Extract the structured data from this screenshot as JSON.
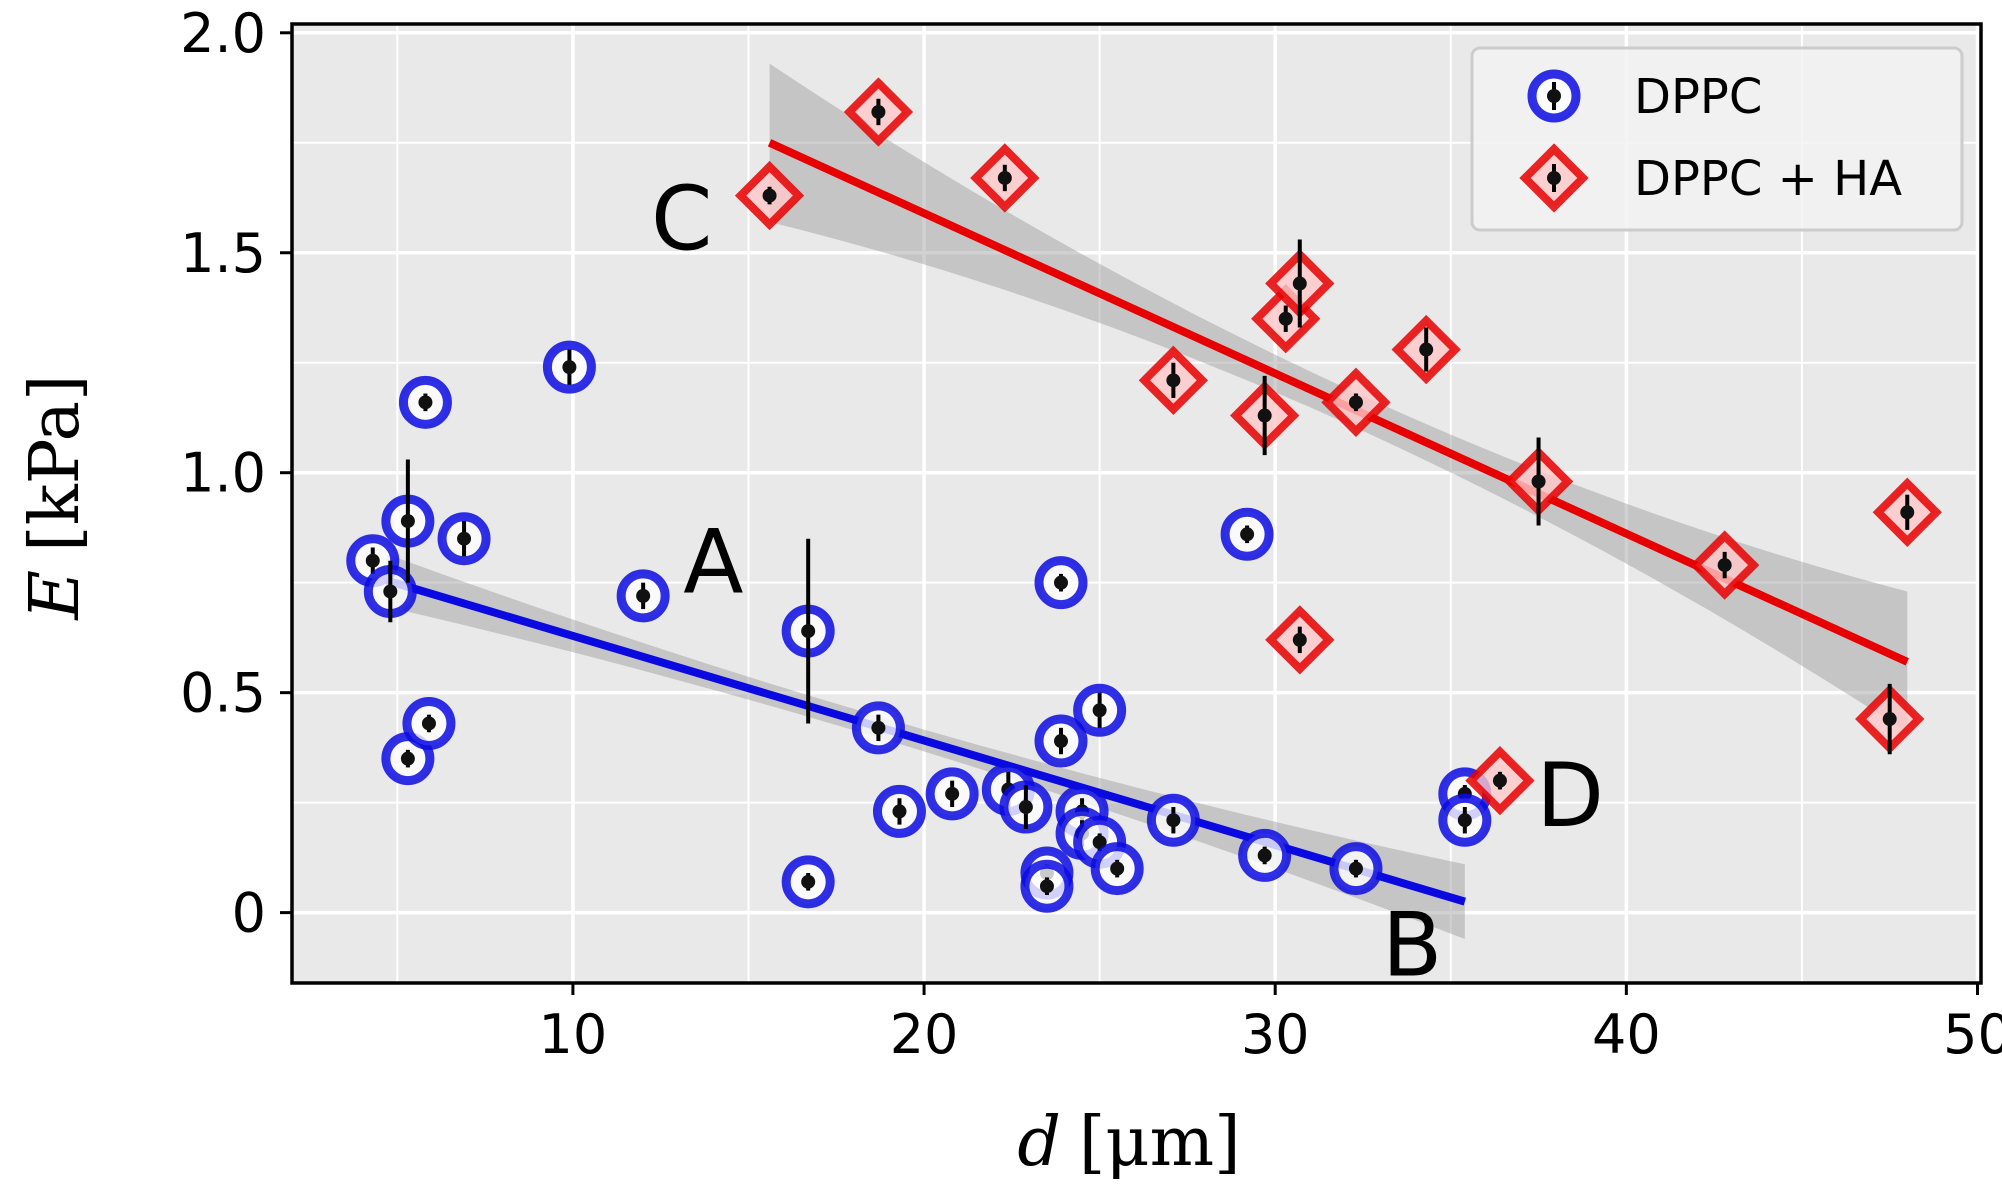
{
  "chart_data": {
    "type": "scatter",
    "xlabel_symbol": "d",
    "xlabel_unit": "[μm]",
    "ylabel_symbol": "E",
    "ylabel_unit": "[kPa]",
    "xlim": [
      2,
      50.1
    ],
    "ylim": [
      -0.16,
      2.02
    ],
    "xticks": [
      10,
      20,
      30,
      40,
      50
    ],
    "xtick_labels": [
      "10",
      "20",
      "30",
      "40",
      "50"
    ],
    "yticks": [
      0,
      0.5,
      1.0,
      1.5,
      2.0
    ],
    "ytick_labels": [
      "0",
      "0.5",
      "1.0",
      "1.5",
      "2.0"
    ],
    "grid": true,
    "legend_position": "top-right",
    "series": [
      {
        "name": "DPPC",
        "marker": "circle",
        "color": "#0a0ae0",
        "points": [
          {
            "x": 4.3,
            "y": 0.8,
            "err": 0.03
          },
          {
            "x": 4.8,
            "y": 0.73,
            "err": 0.07
          },
          {
            "x": 5.3,
            "y": 0.89,
            "err": 0.14
          },
          {
            "x": 5.3,
            "y": 0.35,
            "err": 0.02
          },
          {
            "x": 5.8,
            "y": 1.16,
            "err": 0.02
          },
          {
            "x": 5.9,
            "y": 0.43,
            "err": 0.02
          },
          {
            "x": 6.9,
            "y": 0.85,
            "err": 0.04
          },
          {
            "x": 9.9,
            "y": 1.24,
            "err": 0.04
          },
          {
            "x": 12.0,
            "y": 0.72,
            "err": 0.03
          },
          {
            "x": 16.7,
            "y": 0.64,
            "err": 0.21
          },
          {
            "x": 16.7,
            "y": 0.07,
            "err": 0.02
          },
          {
            "x": 18.7,
            "y": 0.42,
            "err": 0.03
          },
          {
            "x": 19.3,
            "y": 0.23,
            "err": 0.03
          },
          {
            "x": 20.8,
            "y": 0.27,
            "err": 0.03
          },
          {
            "x": 22.4,
            "y": 0.28,
            "err": 0.04
          },
          {
            "x": 22.9,
            "y": 0.24,
            "err": 0.05
          },
          {
            "x": 23.5,
            "y": 0.09,
            "err": 0.02
          },
          {
            "x": 23.5,
            "y": 0.06,
            "err": 0.02
          },
          {
            "x": 23.9,
            "y": 0.75,
            "err": 0.02
          },
          {
            "x": 23.9,
            "y": 0.39,
            "err": 0.03
          },
          {
            "x": 24.5,
            "y": 0.23,
            "err": 0.03
          },
          {
            "x": 24.5,
            "y": 0.18,
            "err": 0.03
          },
          {
            "x": 25.0,
            "y": 0.46,
            "err": 0.04
          },
          {
            "x": 25.0,
            "y": 0.16,
            "err": 0.02
          },
          {
            "x": 25.5,
            "y": 0.1,
            "err": 0.02
          },
          {
            "x": 27.1,
            "y": 0.21,
            "err": 0.03
          },
          {
            "x": 29.2,
            "y": 0.86,
            "err": 0.02
          },
          {
            "x": 29.7,
            "y": 0.13,
            "err": 0.02
          },
          {
            "x": 32.3,
            "y": 0.1,
            "err": 0.02
          },
          {
            "x": 35.4,
            "y": 0.27,
            "err": 0.02
          },
          {
            "x": 35.4,
            "y": 0.21,
            "err": 0.03
          }
        ],
        "fit": {
          "x": [
            4.7,
            35.4
          ],
          "y": [
            0.755,
            0.025
          ],
          "band_half_width_ends": [
            0.06,
            0.085
          ],
          "band_half_width_mid": 0.025
        }
      },
      {
        "name": "DPPC + HA",
        "marker": "diamond",
        "color": "#e60000",
        "points": [
          {
            "x": 15.6,
            "y": 1.63,
            "err": 0.02
          },
          {
            "x": 18.7,
            "y": 1.82,
            "err": 0.03
          },
          {
            "x": 22.3,
            "y": 1.67,
            "err": 0.03
          },
          {
            "x": 27.1,
            "y": 1.21,
            "err": 0.04
          },
          {
            "x": 29.7,
            "y": 1.13,
            "err": 0.09
          },
          {
            "x": 30.3,
            "y": 1.35,
            "err": 0.03
          },
          {
            "x": 30.7,
            "y": 1.43,
            "err": 0.1
          },
          {
            "x": 30.7,
            "y": 0.62,
            "err": 0.03
          },
          {
            "x": 32.3,
            "y": 1.16,
            "err": 0.02
          },
          {
            "x": 34.3,
            "y": 1.28,
            "err": 0.05
          },
          {
            "x": 36.4,
            "y": 0.3,
            "err": 0.02
          },
          {
            "x": 37.5,
            "y": 0.98,
            "err": 0.1
          },
          {
            "x": 42.8,
            "y": 0.79,
            "err": 0.03
          },
          {
            "x": 47.5,
            "y": 0.44,
            "err": 0.08
          },
          {
            "x": 48.0,
            "y": 0.91,
            "err": 0.04
          }
        ],
        "fit": {
          "x": [
            15.6,
            48.0
          ],
          "y": [
            1.75,
            0.57
          ],
          "band_half_width_ends": [
            0.18,
            0.16
          ],
          "band_half_width_mid": 0.04
        }
      }
    ],
    "annotations": [
      {
        "text": "A",
        "x": 14.0,
        "y": 0.8
      },
      {
        "text": "B",
        "x": 33.9,
        "y": -0.07
      },
      {
        "text": "C",
        "x": 13.1,
        "y": 1.58
      },
      {
        "text": "D",
        "x": 38.4,
        "y": 0.27
      }
    ]
  }
}
